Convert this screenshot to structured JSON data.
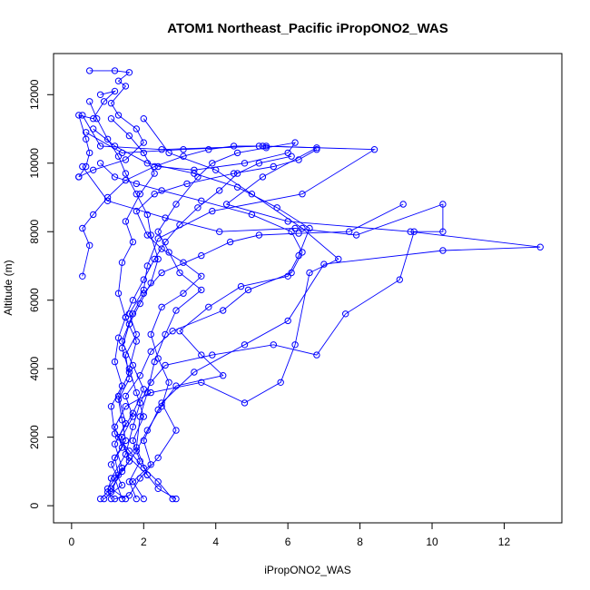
{
  "chart_data": {
    "type": "line",
    "title": "ATOM1 Northeast_Pacific iPropONO2_WAS",
    "xlabel": "iPropONO2_WAS",
    "ylabel": "Altitude (m)",
    "xlim": [
      -0.5,
      13.6
    ],
    "ylim": [
      -500,
      13200
    ],
    "x_ticks": [
      0,
      2,
      4,
      6,
      8,
      10,
      12
    ],
    "y_ticks": [
      0,
      2000,
      4000,
      6000,
      8000,
      10000,
      12000
    ],
    "grid": false,
    "legend": "none",
    "color": "#0000ff",
    "marker": "open-circle",
    "series": [
      {
        "points": [
          [
            1.1,
            200
          ],
          [
            1.0,
            500
          ],
          [
            1.3,
            900
          ],
          [
            1.2,
            1400
          ],
          [
            1.5,
            1900
          ],
          [
            1.4,
            2500
          ],
          [
            1.3,
            3100
          ],
          [
            1.6,
            3700
          ],
          [
            1.5,
            4400
          ],
          [
            1.8,
            5000
          ],
          [
            1.6,
            5600
          ],
          [
            2.0,
            6300
          ],
          [
            2.1,
            7000
          ],
          [
            2.4,
            7800
          ],
          [
            3.9,
            8600
          ],
          [
            6.4,
            9100
          ],
          [
            8.4,
            10400
          ],
          [
            5.3,
            10500
          ],
          [
            2.5,
            10400
          ],
          [
            0.8,
            10500
          ],
          [
            0.3,
            11400
          ]
        ]
      },
      {
        "points": [
          [
            0.5,
            12700
          ],
          [
            1.2,
            12700
          ],
          [
            1.6,
            12650
          ],
          [
            1.3,
            12400
          ],
          [
            1.5,
            12250
          ],
          [
            1.1,
            11750
          ],
          [
            1.3,
            11400
          ],
          [
            1.8,
            11000
          ],
          [
            2.0,
            10600
          ],
          [
            1.5,
            10100
          ],
          [
            0.6,
            9800
          ],
          [
            0.2,
            9600
          ]
        ]
      },
      {
        "points": [
          [
            1.2,
            200
          ],
          [
            1.6,
            300
          ],
          [
            1.9,
            800
          ],
          [
            2.4,
            1400
          ],
          [
            2.9,
            2200
          ],
          [
            2.5,
            3000
          ],
          [
            3.4,
            3900
          ],
          [
            4.8,
            4700
          ],
          [
            6.0,
            5400
          ],
          [
            7.0,
            7050
          ],
          [
            10.3,
            7450
          ],
          [
            13.0,
            7550
          ],
          [
            9.4,
            8000
          ],
          [
            6.0,
            8300
          ],
          [
            4.3,
            8800
          ],
          [
            5.3,
            9600
          ],
          [
            6.8,
            10450
          ],
          [
            5.2,
            10500
          ],
          [
            3.1,
            10400
          ],
          [
            1.4,
            10300
          ],
          [
            0.4,
            10900
          ]
        ]
      },
      {
        "points": [
          [
            0.8,
            200
          ],
          [
            1.0,
            400
          ],
          [
            1.1,
            800
          ],
          [
            1.5,
            1500
          ],
          [
            1.7,
            2300
          ],
          [
            1.9,
            3000
          ],
          [
            2.2,
            3600
          ],
          [
            2.6,
            4100
          ],
          [
            3.9,
            4400
          ],
          [
            5.6,
            4700
          ],
          [
            6.8,
            4400
          ],
          [
            7.6,
            5600
          ],
          [
            9.1,
            6600
          ],
          [
            9.5,
            8000
          ],
          [
            10.3,
            8000
          ],
          [
            10.3,
            8800
          ],
          [
            7.9,
            7900
          ],
          [
            6.2,
            8100
          ],
          [
            4.1,
            8000
          ],
          [
            2.6,
            8400
          ],
          [
            1.0,
            8900
          ],
          [
            0.3,
            9900
          ]
        ]
      },
      {
        "points": [
          [
            2.0,
            200
          ],
          [
            1.7,
            700
          ],
          [
            2.2,
            1200
          ],
          [
            2.0,
            1900
          ],
          [
            2.4,
            2800
          ],
          [
            2.9,
            3500
          ],
          [
            4.2,
            3800
          ],
          [
            3.6,
            4400
          ],
          [
            3.0,
            5100
          ],
          [
            3.8,
            5800
          ],
          [
            4.7,
            6400
          ],
          [
            6.0,
            6700
          ],
          [
            6.3,
            7300
          ],
          [
            6.6,
            8100
          ],
          [
            5.7,
            8700
          ],
          [
            4.6,
            9300
          ],
          [
            3.4,
            9700
          ],
          [
            2.1,
            10000
          ],
          [
            1.2,
            10500
          ],
          [
            0.6,
            11000
          ]
        ]
      },
      {
        "points": [
          [
            2.8,
            200
          ],
          [
            2.4,
            700
          ],
          [
            2.0,
            1100
          ],
          [
            1.6,
            1600
          ],
          [
            1.2,
            2100
          ],
          [
            1.1,
            2900
          ],
          [
            1.4,
            3500
          ],
          [
            1.2,
            4200
          ],
          [
            1.3,
            4900
          ],
          [
            1.5,
            5500
          ],
          [
            1.3,
            6200
          ],
          [
            1.4,
            7100
          ],
          [
            1.7,
            7700
          ],
          [
            1.5,
            8300
          ],
          [
            1.9,
            9100
          ],
          [
            2.3,
            9700
          ],
          [
            2.0,
            10300
          ],
          [
            1.6,
            10800
          ],
          [
            1.1,
            11300
          ]
        ]
      },
      {
        "points": [
          [
            0.9,
            200
          ],
          [
            1.4,
            600
          ],
          [
            1.1,
            1200
          ],
          [
            1.4,
            1700
          ],
          [
            1.2,
            2300
          ],
          [
            1.5,
            2900
          ],
          [
            2.2,
            3300
          ],
          [
            3.6,
            3600
          ],
          [
            4.8,
            3000
          ],
          [
            5.8,
            3600
          ],
          [
            6.2,
            4700
          ],
          [
            6.6,
            6800
          ],
          [
            7.4,
            7200
          ],
          [
            6.4,
            8100
          ],
          [
            5.0,
            9100
          ],
          [
            4.0,
            9800
          ],
          [
            2.7,
            10300
          ],
          [
            2.0,
            11300
          ]
        ]
      },
      {
        "points": [
          [
            0.2,
            9600
          ],
          [
            0.4,
            9900
          ],
          [
            0.5,
            10300
          ],
          [
            0.4,
            10700
          ],
          [
            0.2,
            11400
          ],
          [
            0.6,
            11300
          ],
          [
            0.9,
            11800
          ],
          [
            1.2,
            12100
          ],
          [
            0.8,
            12000
          ]
        ]
      },
      {
        "points": [
          [
            2.9,
            200
          ],
          [
            2.4,
            500
          ],
          [
            2.1,
            900
          ],
          [
            1.8,
            1700
          ],
          [
            1.9,
            2600
          ],
          [
            2.1,
            3300
          ],
          [
            2.3,
            4200
          ],
          [
            2.6,
            5000
          ],
          [
            2.9,
            5700
          ],
          [
            3.6,
            6300
          ],
          [
            3.0,
            6800
          ],
          [
            2.7,
            7400
          ],
          [
            2.4,
            8000
          ],
          [
            2.9,
            8800
          ],
          [
            3.5,
            9600
          ],
          [
            3.9,
            10000
          ],
          [
            4.6,
            10300
          ],
          [
            5.4,
            10450
          ],
          [
            6.2,
            10600
          ],
          [
            6.0,
            10300
          ],
          [
            4.8,
            10000
          ],
          [
            3.4,
            9800
          ],
          [
            2.4,
            9900
          ]
        ]
      },
      {
        "points": [
          [
            0.3,
            6700
          ],
          [
            0.5,
            7600
          ],
          [
            0.3,
            8100
          ],
          [
            0.6,
            8500
          ],
          [
            1.0,
            9000
          ],
          [
            1.5,
            9500
          ],
          [
            2.3,
            9900
          ],
          [
            3.1,
            10200
          ],
          [
            3.8,
            10400
          ],
          [
            4.5,
            10500
          ],
          [
            5.4,
            10500
          ]
        ]
      },
      {
        "points": [
          [
            1.4,
            200
          ],
          [
            1.2,
            800
          ],
          [
            1.6,
            1300
          ],
          [
            1.4,
            2000
          ],
          [
            1.7,
            2600
          ],
          [
            1.5,
            3200
          ],
          [
            1.9,
            3800
          ],
          [
            2.2,
            4500
          ],
          [
            2.8,
            5100
          ],
          [
            4.2,
            5700
          ],
          [
            4.9,
            6300
          ],
          [
            6.1,
            6800
          ],
          [
            6.4,
            7400
          ],
          [
            6.1,
            8000
          ],
          [
            5.0,
            8500
          ],
          [
            3.6,
            8900
          ],
          [
            2.5,
            9200
          ],
          [
            1.8,
            9400
          ],
          [
            1.2,
            9600
          ],
          [
            0.8,
            10000
          ]
        ]
      },
      {
        "points": [
          [
            1.5,
            200
          ],
          [
            1.1,
            500
          ],
          [
            1.4,
            1000
          ],
          [
            1.8,
            1600
          ],
          [
            2.1,
            2200
          ],
          [
            2.5,
            2900
          ],
          [
            2.7,
            3600
          ],
          [
            2.4,
            4300
          ],
          [
            2.2,
            5000
          ],
          [
            2.5,
            5800
          ],
          [
            3.1,
            6200
          ],
          [
            3.6,
            6700
          ],
          [
            3.1,
            7100
          ],
          [
            2.5,
            7500
          ],
          [
            2.1,
            7900
          ],
          [
            1.8,
            8600
          ],
          [
            2.3,
            9100
          ],
          [
            3.2,
            9400
          ],
          [
            4.5,
            9700
          ],
          [
            5.6,
            9900
          ],
          [
            6.3,
            10100
          ],
          [
            6.8,
            10400
          ]
        ]
      },
      {
        "points": [
          [
            1.1,
            400
          ],
          [
            1.4,
            1100
          ],
          [
            1.2,
            1800
          ],
          [
            1.5,
            2400
          ],
          [
            1.3,
            3200
          ],
          [
            1.6,
            3900
          ],
          [
            1.4,
            4600
          ],
          [
            1.6,
            5300
          ],
          [
            1.9,
            5900
          ],
          [
            2.2,
            6500
          ],
          [
            2.4,
            7200
          ],
          [
            2.2,
            7900
          ],
          [
            2.1,
            8500
          ],
          [
            1.8,
            9100
          ],
          [
            1.5,
            9700
          ],
          [
            1.3,
            10200
          ],
          [
            1.0,
            10700
          ],
          [
            0.7,
            11300
          ],
          [
            0.5,
            11800
          ]
        ]
      },
      {
        "points": [
          [
            1.8,
            200
          ],
          [
            1.6,
            700
          ],
          [
            1.9,
            1300
          ],
          [
            1.7,
            1900
          ],
          [
            2.0,
            2600
          ],
          [
            1.8,
            3300
          ],
          [
            1.6,
            4000
          ],
          [
            1.8,
            4800
          ],
          [
            1.5,
            5500
          ],
          [
            1.7,
            6000
          ],
          [
            2.0,
            6600
          ],
          [
            2.3,
            7200
          ],
          [
            2.6,
            7700
          ],
          [
            3.0,
            8200
          ],
          [
            3.5,
            8700
          ],
          [
            4.1,
            9200
          ],
          [
            4.6,
            9700
          ],
          [
            5.2,
            10000
          ],
          [
            6.1,
            10200
          ]
        ]
      },
      {
        "points": [
          [
            2.1,
            900
          ],
          [
            1.6,
            1400
          ],
          [
            1.3,
            2000
          ],
          [
            1.7,
            2700
          ],
          [
            2.0,
            3400
          ],
          [
            1.7,
            4100
          ],
          [
            1.4,
            4800
          ],
          [
            1.7,
            5600
          ],
          [
            2.0,
            6200
          ],
          [
            2.5,
            6800
          ],
          [
            3.6,
            7300
          ],
          [
            4.4,
            7700
          ],
          [
            5.2,
            7900
          ],
          [
            6.3,
            7950
          ],
          [
            7.7,
            8000
          ],
          [
            9.2,
            8800
          ]
        ]
      }
    ]
  }
}
